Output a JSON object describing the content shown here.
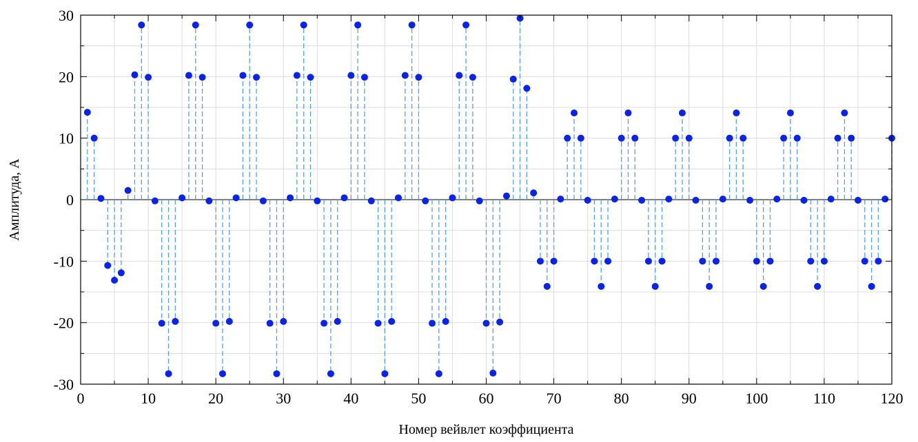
{
  "chart_data": {
    "type": "scatter",
    "style": "stem",
    "title": "",
    "xlabel": "Номер вейвлет коэффициента",
    "ylabel": "Амплитуда, А",
    "xlim": [
      0,
      120
    ],
    "ylim": [
      -30,
      30
    ],
    "xticks": [
      0,
      10,
      20,
      30,
      40,
      50,
      60,
      70,
      80,
      90,
      100,
      110,
      120
    ],
    "yticks": [
      -30,
      -20,
      -10,
      0,
      10,
      20,
      30
    ],
    "grid": true,
    "legend": "none",
    "colors": {
      "marker": "#0a23e6",
      "stem": "#5aa0e0",
      "grid": "#dcdcdc",
      "zero_line": "#000000"
    },
    "x": [
      1,
      2,
      3,
      4,
      5,
      6,
      7,
      8,
      9,
      10,
      11,
      12,
      13,
      14,
      15,
      16,
      17,
      18,
      19,
      20,
      21,
      22,
      23,
      24,
      25,
      26,
      27,
      28,
      29,
      30,
      31,
      32,
      33,
      34,
      35,
      36,
      37,
      38,
      39,
      40,
      41,
      42,
      43,
      44,
      45,
      46,
      47,
      48,
      49,
      50,
      51,
      52,
      53,
      54,
      55,
      56,
      57,
      58,
      59,
      60,
      61,
      62,
      63,
      64,
      65,
      66,
      67,
      68,
      69,
      70,
      71,
      72,
      73,
      74,
      75,
      76,
      77,
      78,
      79,
      80,
      81,
      82,
      83,
      84,
      85,
      86,
      87,
      88,
      89,
      90,
      91,
      92,
      93,
      94,
      95,
      96,
      97,
      98,
      99,
      100,
      101,
      102,
      103,
      104,
      105,
      106,
      107,
      108,
      109,
      110,
      111,
      112,
      113,
      114,
      115,
      116,
      117,
      118,
      119,
      120
    ],
    "y": [
      14.2,
      10.0,
      0.2,
      -10.7,
      -13.1,
      -11.9,
      1.5,
      20.3,
      28.4,
      19.9,
      -0.2,
      -20.1,
      -28.3,
      -19.8,
      0.3,
      20.2,
      28.4,
      19.9,
      -0.2,
      -20.1,
      -28.3,
      -19.8,
      0.3,
      20.2,
      28.4,
      19.9,
      -0.2,
      -20.1,
      -28.3,
      -19.8,
      0.3,
      20.2,
      28.4,
      19.9,
      -0.2,
      -20.1,
      -28.3,
      -19.8,
      0.3,
      20.2,
      28.4,
      19.9,
      -0.2,
      -20.1,
      -28.3,
      -19.8,
      0.3,
      20.2,
      28.4,
      19.9,
      -0.2,
      -20.1,
      -28.3,
      -19.8,
      0.3,
      20.2,
      28.4,
      19.9,
      -0.2,
      -20.1,
      -28.2,
      -19.9,
      0.6,
      19.6,
      29.5,
      18.1,
      1.1,
      -10.0,
      -14.1,
      -10.0,
      0.1,
      10.0,
      14.1,
      10.0,
      -0.1,
      -10.0,
      -14.1,
      -10.0,
      0.1,
      10.0,
      14.1,
      10.0,
      -0.1,
      -10.0,
      -14.1,
      -10.0,
      0.1,
      10.0,
      14.1,
      10.0,
      -0.1,
      -10.0,
      -14.1,
      -10.0,
      0.1,
      10.0,
      14.1,
      10.0,
      -0.1,
      -10.0,
      -14.1,
      -10.0,
      0.1,
      10.0,
      14.1,
      10.0,
      -0.1,
      -10.0,
      -14.1,
      -10.0,
      0.1,
      10.0,
      14.1,
      10.0,
      -0.1,
      -10.0,
      -14.1,
      -10.0,
      0.1,
      10.0
    ]
  }
}
